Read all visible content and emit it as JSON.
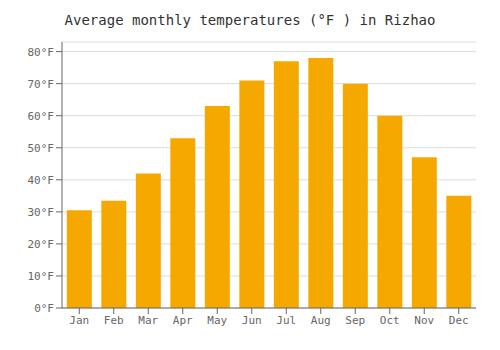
{
  "chart_data": {
    "type": "bar",
    "title": "Average monthly temperatures (°F ) in Rizhao",
    "categories": [
      "Jan",
      "Feb",
      "Mar",
      "Apr",
      "May",
      "Jun",
      "Jul",
      "Aug",
      "Sep",
      "Oct",
      "Nov",
      "Dec"
    ],
    "values": [
      30.5,
      33.5,
      42,
      53,
      63,
      71,
      77,
      78,
      70,
      60,
      47,
      35
    ],
    "color": "#F5A800",
    "ylim": [
      0,
      83
    ],
    "yticks": [
      {
        "value": 0,
        "label": "0°F"
      },
      {
        "value": 10,
        "label": "10°F"
      },
      {
        "value": 20,
        "label": "20°F"
      },
      {
        "value": 30,
        "label": "30°F"
      },
      {
        "value": 40,
        "label": "40°F"
      },
      {
        "value": 50,
        "label": "50°F"
      },
      {
        "value": 60,
        "label": "60°F"
      },
      {
        "value": 70,
        "label": "70°F"
      },
      {
        "value": 80,
        "label": "80°F"
      }
    ],
    "grid": true
  }
}
